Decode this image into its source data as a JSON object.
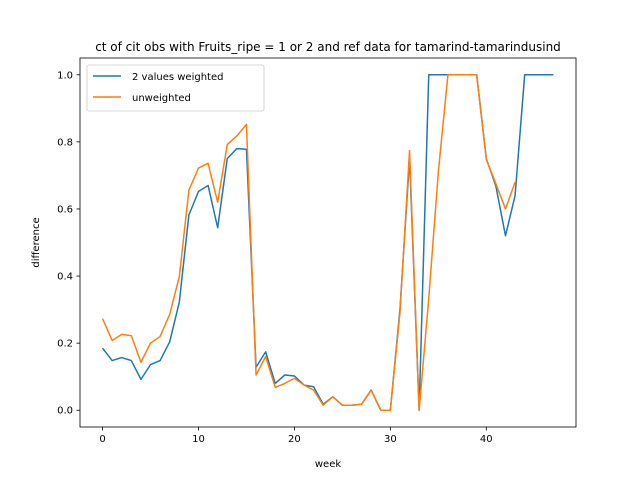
{
  "chart_data": {
    "type": "line",
    "title": "ct of cit obs with Fruits_ripe = 1 or 2 and ref data for tamarind-tamarindusind",
    "xlabel": "week",
    "ylabel": "difference",
    "xlim": [
      -2.35,
      49.35
    ],
    "ylim": [
      -0.05,
      1.05
    ],
    "xticks": [
      0,
      10,
      20,
      30,
      40
    ],
    "yticks": [
      0.0,
      0.2,
      0.4,
      0.6,
      0.8,
      1.0
    ],
    "xtick_labels": [
      "0",
      "10",
      "20",
      "30",
      "40"
    ],
    "ytick_labels": [
      "0.0",
      "0.2",
      "0.4",
      "0.6",
      "0.8",
      "1.0"
    ],
    "grid": false,
    "legend_position": "upper-left",
    "series": [
      {
        "name": "2 values weighted",
        "color": "#1f77b4",
        "x": [
          0,
          1,
          2,
          3,
          4,
          5,
          6,
          7,
          8,
          9,
          10,
          11,
          12,
          13,
          14,
          15,
          16,
          17,
          18,
          19,
          20,
          21,
          22,
          23,
          24,
          25,
          26,
          27,
          28,
          29,
          30,
          31,
          32,
          33,
          34,
          35,
          36,
          37,
          38,
          39,
          40,
          41,
          42,
          43,
          44,
          45,
          46,
          47
        ],
        "y": [
          0.185,
          0.148,
          0.157,
          0.148,
          0.092,
          0.136,
          0.148,
          0.204,
          0.322,
          0.582,
          0.652,
          0.67,
          0.544,
          0.75,
          0.78,
          0.778,
          0.128,
          0.174,
          0.08,
          0.105,
          0.102,
          0.075,
          0.07,
          0.018,
          0.04,
          0.015,
          0.015,
          0.018,
          0.06,
          0.0,
          0.0,
          0.3,
          0.75,
          0.0,
          1.0,
          1.0,
          1.0,
          1.0,
          1.0,
          1.0,
          0.75,
          0.668,
          0.52,
          0.64,
          1.0,
          1.0,
          1.0,
          1.0
        ]
      },
      {
        "name": "unweighted",
        "color": "#ff7f0e",
        "x": [
          0,
          1,
          2,
          3,
          4,
          5,
          6,
          7,
          8,
          9,
          10,
          11,
          12,
          13,
          14,
          15,
          16,
          17,
          18,
          19,
          20,
          21,
          22,
          23,
          24,
          25,
          26,
          27,
          28,
          29,
          30,
          31,
          32,
          33,
          34,
          35,
          36,
          37,
          38,
          39,
          40,
          41,
          42,
          43
        ],
        "y": [
          0.273,
          0.208,
          0.226,
          0.222,
          0.143,
          0.2,
          0.22,
          0.286,
          0.398,
          0.656,
          0.722,
          0.736,
          0.62,
          0.792,
          0.818,
          0.852,
          0.105,
          0.16,
          0.068,
          0.08,
          0.095,
          0.075,
          0.06,
          0.015,
          0.04,
          0.015,
          0.015,
          0.018,
          0.06,
          0.0,
          0.0,
          0.29,
          0.774,
          0.0,
          0.333,
          0.71,
          1.0,
          1.0,
          1.0,
          1.0,
          0.748,
          0.675,
          0.6,
          0.68
        ]
      }
    ]
  }
}
